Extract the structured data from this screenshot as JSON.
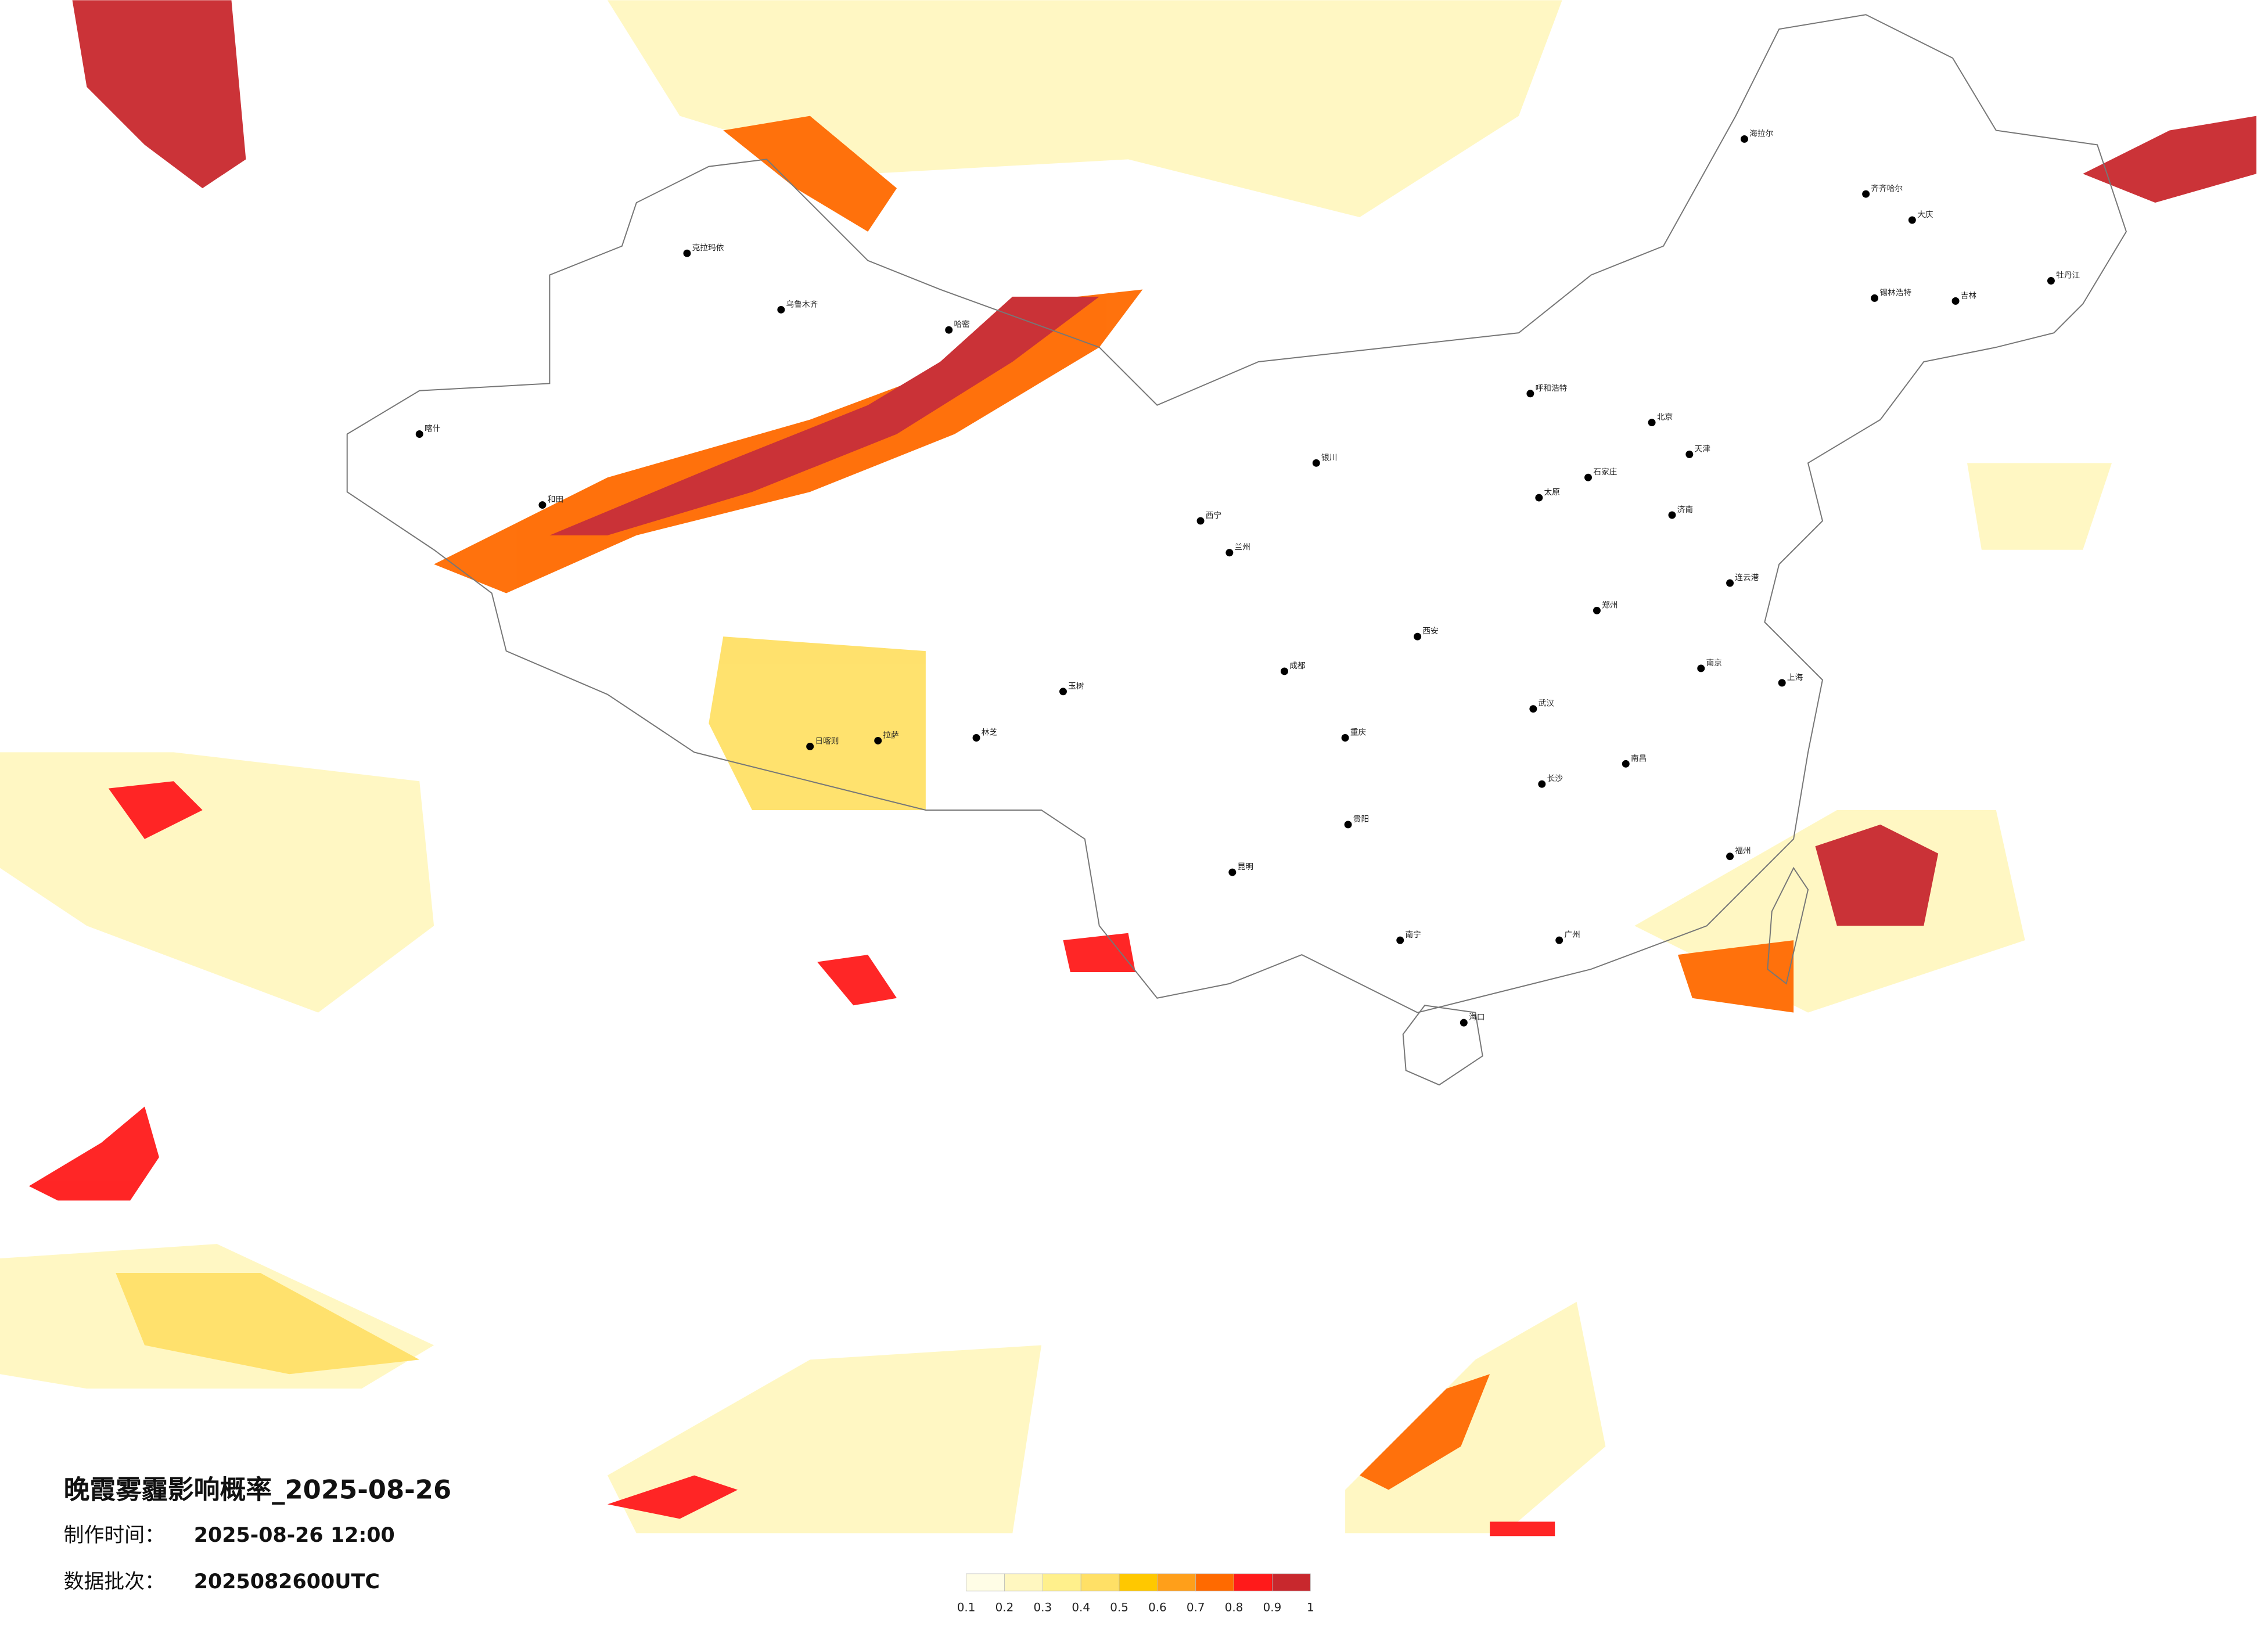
{
  "title": "晚霞雾霾影响概率_2025-08-26",
  "production_time": {
    "label": "制作时间：",
    "value": "2025-08-26 12:00"
  },
  "data_batch": {
    "label": "数据批次：",
    "value": "2025082600UTC"
  },
  "legend": {
    "colors": [
      "#fffde6",
      "#fff7c0",
      "#fff08c",
      "#ffe066",
      "#ffc800",
      "#ff9f1a",
      "#ff6a00",
      "#ff1a1a",
      "#c8282d"
    ],
    "ticks": [
      0.1,
      0.2,
      0.3,
      0.4,
      0.5,
      0.6,
      0.7,
      0.8,
      0.9,
      1
    ]
  },
  "cities": [
    "克拉玛依",
    "乌鲁木齐",
    "哈密",
    "和田",
    "喀什",
    "日喀则",
    "拉萨",
    "林芝",
    "玉树",
    "西宁",
    "兰州",
    "银川",
    "呼和浩特",
    "锡林浩特",
    "海拉尔",
    "齐齐哈尔",
    "大庆",
    "牡丹江",
    "吉林",
    "北京",
    "天津",
    "石家庄",
    "太原",
    "济南",
    "连云港",
    "郑州",
    "西安",
    "成都",
    "重庆",
    "贵阳",
    "昆明",
    "南宁",
    "长沙",
    "南昌",
    "武汉",
    "广州",
    "福州",
    "海口",
    "上海",
    "南京"
  ]
}
